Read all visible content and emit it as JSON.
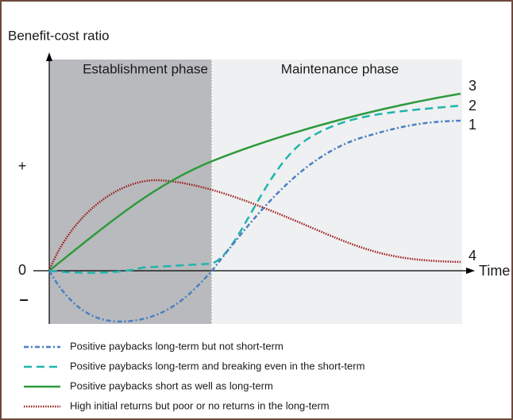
{
  "title": "Benefit-cost ratio",
  "phases": [
    "Establishment phase",
    "Maintenance phase"
  ],
  "x_axis_label": "Time",
  "y_axis_marks": [
    "+",
    "0",
    "–"
  ],
  "curve_labels": [
    "1",
    "2",
    "3",
    "4"
  ],
  "legend": [
    "Positive paybacks long-term but not short-term",
    "Positive paybacks long-term and breaking even in the short-term",
    "Positive paybacks short as well as long-term",
    "High initial returns but poor or no returns in the long-term"
  ]
}
